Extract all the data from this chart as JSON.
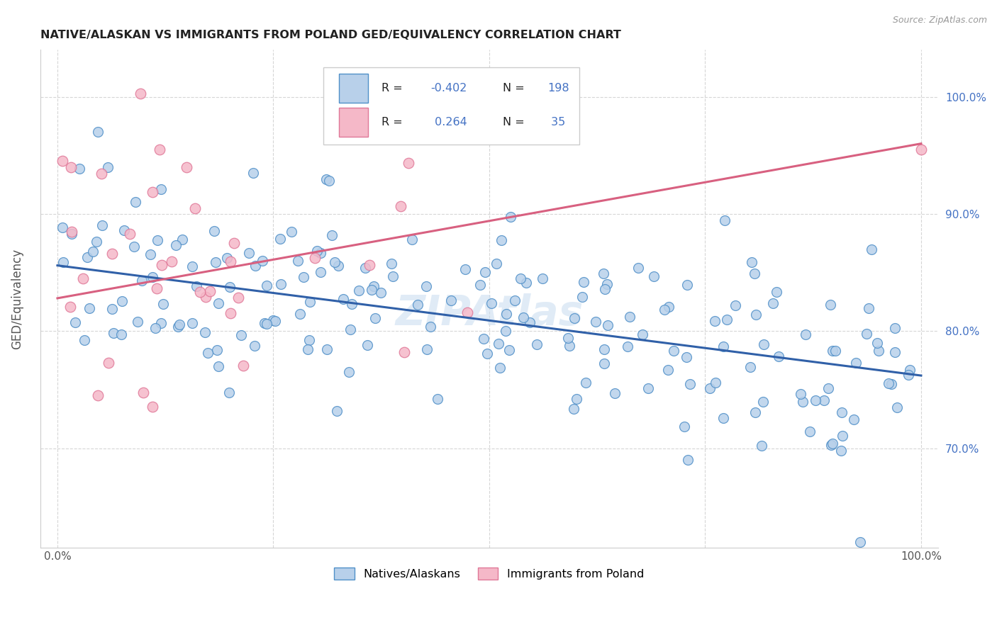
{
  "title": "NATIVE/ALASKAN VS IMMIGRANTS FROM POLAND GED/EQUIVALENCY CORRELATION CHART",
  "source": "Source: ZipAtlas.com",
  "ylabel": "GED/Equivalency",
  "ytick_labels": [
    "70.0%",
    "80.0%",
    "90.0%",
    "100.0%"
  ],
  "ytick_positions": [
    0.7,
    0.8,
    0.9,
    1.0
  ],
  "legend_label_blue": "Natives/Alaskans",
  "legend_label_pink": "Immigrants from Poland",
  "legend_R_blue": "-0.402",
  "legend_N_blue": "198",
  "legend_R_pink": "0.264",
  "legend_N_pink": "35",
  "blue_face_color": "#b8d0ea",
  "blue_edge_color": "#5090c8",
  "pink_face_color": "#f5b8c8",
  "pink_edge_color": "#e07898",
  "blue_line_color": "#3060a8",
  "pink_line_color": "#d86080",
  "watermark": "ZIPAtlas",
  "blue_line_x": [
    0.0,
    1.0
  ],
  "blue_line_y": [
    0.856,
    0.762
  ],
  "pink_line_x": [
    0.0,
    1.0
  ],
  "pink_line_y": [
    0.828,
    0.96
  ],
  "xlim": [
    -0.02,
    1.02
  ],
  "ylim": [
    0.615,
    1.04
  ],
  "scatter_size_blue": 100,
  "scatter_size_pink": 110,
  "blue_seed": 42,
  "pink_seed": 7,
  "N_blue": 198,
  "N_pink": 35,
  "R_blue": -0.402,
  "R_pink": 0.264
}
